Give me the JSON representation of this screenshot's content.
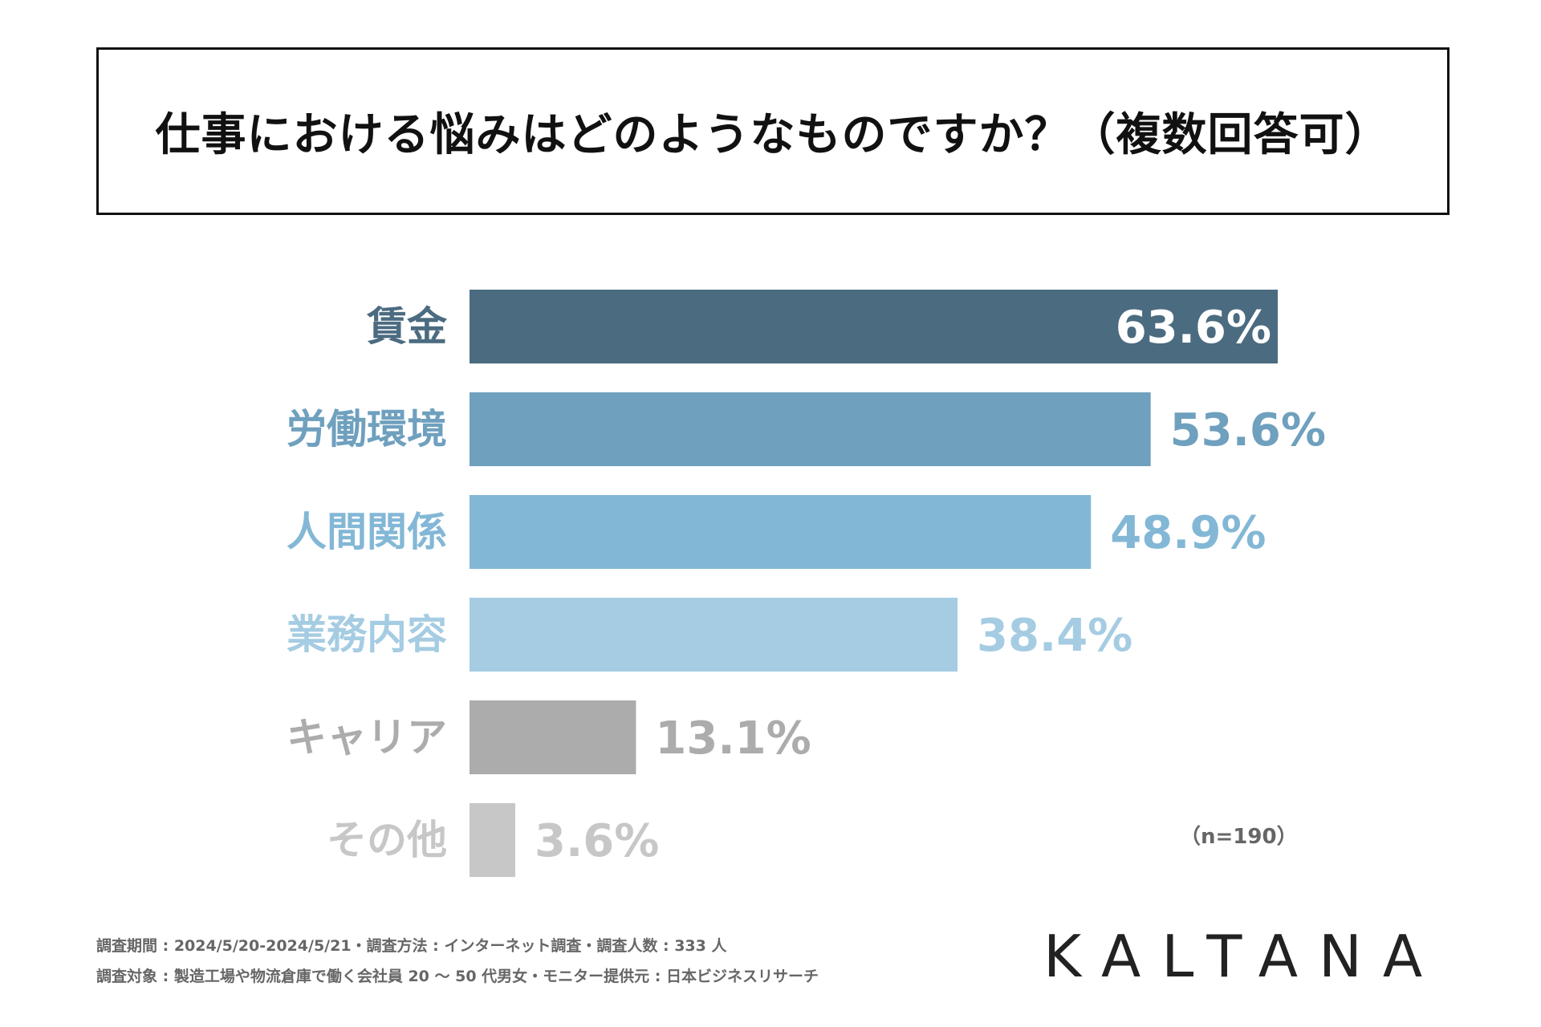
{
  "title": "仕事における悩みはどのようなものですか？（複数回答可）",
  "chart_data": {
    "type": "bar",
    "orientation": "horizontal",
    "title": "仕事における悩みはどのようなものですか？（複数回答可）",
    "categories": [
      "賃金",
      "労働環境",
      "人間関係",
      "業務内容",
      "キャリア",
      "その他"
    ],
    "values": [
      63.6,
      53.6,
      48.9,
      38.4,
      13.1,
      3.6
    ],
    "value_labels": [
      "63.6%",
      "53.6%",
      "48.9%",
      "38.4%",
      "13.1%",
      "3.6%"
    ],
    "bar_colors": [
      "#4b6b80",
      "#6fa0be",
      "#83b7d6",
      "#a5cce2",
      "#acacac",
      "#c7c7c7"
    ],
    "label_colors": [
      "#4b6b80",
      "#6fa0be",
      "#83b7d6",
      "#a5cce2",
      "#acacac",
      "#c7c7c7"
    ],
    "value_label_colors": [
      "#ffffff",
      "#6fa0be",
      "#83b7d6",
      "#a5cce2",
      "#acacac",
      "#c7c7c7"
    ],
    "xlim": [
      0,
      63.6
    ],
    "xlabel": "",
    "ylabel": "",
    "grid": false,
    "legend": "none"
  },
  "note": "（n=190）",
  "footnotes": [
    "調査期間 : 2024/5/20-2024/5/21・調査方法 : インターネット調査・調査人数 : 333 人",
    "調査対象 : 製造工場や物流倉庫で働く会社員 20 〜 50 代男女・モニター提供元 : 日本ビジネスリサーチ"
  ],
  "brand": "KALTANA"
}
